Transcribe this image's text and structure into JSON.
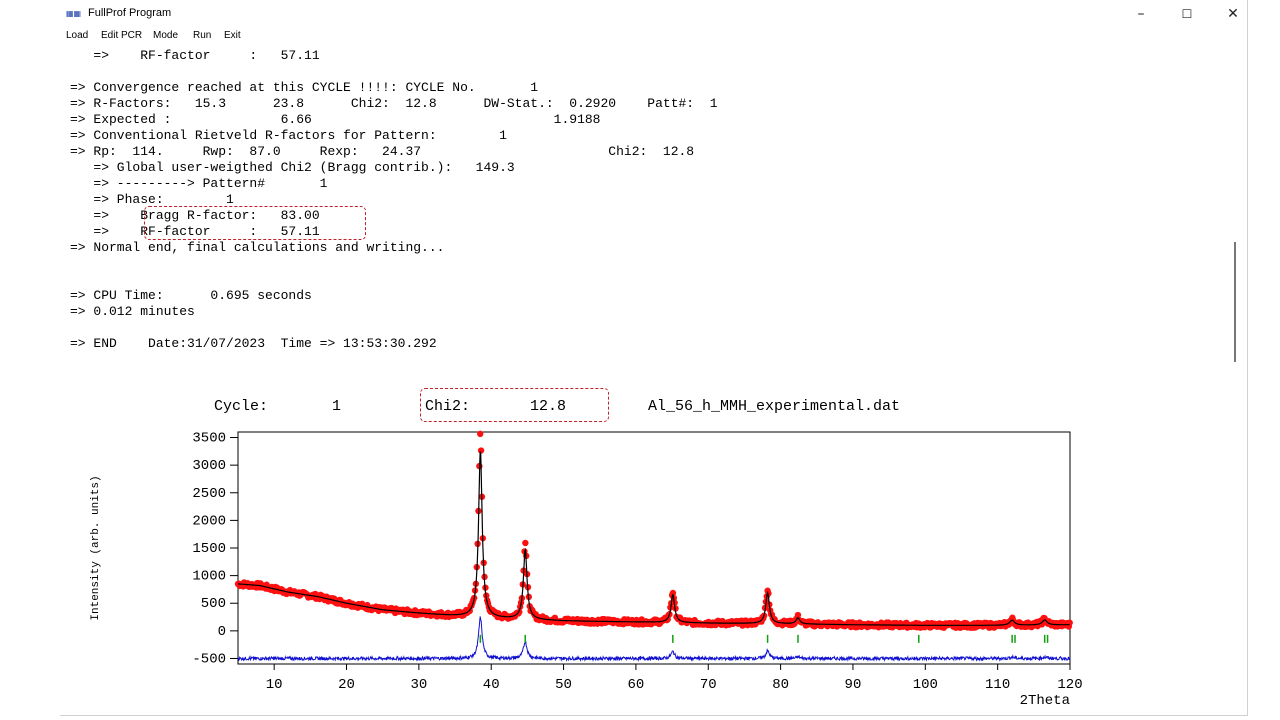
{
  "window": {
    "title": "FullProf Program",
    "controls": {
      "minimize": "–",
      "maximize": "☐",
      "close": "✕"
    }
  },
  "menu": [
    "Load",
    "Edit PCR",
    "Mode",
    "Run",
    "Exit"
  ],
  "console": {
    "lines": [
      "   =>    RF-factor     :   57.11",
      "",
      "=> Convergence reached at this CYCLE !!!!: CYCLE No.       1",
      "=> R-Factors:   15.3      23.8      Chi2:  12.8      DW-Stat.:  0.2920    Patt#:  1",
      "=> Expected :              6.66                               1.9188",
      "=> Conventional Rietveld R-factors for Pattern:        1",
      "=> Rp:  114.     Rwp:  87.0     Rexp:   24.37                        Chi2:  12.8",
      "   => Global user-weigthed Chi2 (Bragg contrib.):   149.3",
      "   => ---------> Pattern#       1",
      "   => Phase:        1",
      "   =>    Bragg R-factor:   83.00",
      "   =>    RF-factor     :   57.11",
      "=> Normal end, final calculations and writing...",
      "",
      "",
      "=> CPU Time:      0.695 seconds",
      "=> 0.012 minutes",
      "",
      "=> END    Date:31/07/2023  Time => 13:53:30.292"
    ]
  },
  "plot": {
    "cycle_label": "Cycle:",
    "cycle_value": "1",
    "chi2_label": "Chi2:",
    "chi2_value": "12.8",
    "filename": "Al_56_h_MMH_experimental.dat"
  },
  "colors": {
    "observed": "#ff1010",
    "calculated": "#000000",
    "difference": "#1010d0",
    "bragg": "#10a010",
    "highlight": "#c0202a"
  },
  "chart_data": {
    "type": "scatter",
    "xlabel": "2Theta",
    "ylabel": "Intensity (arb. units)",
    "xlim": [
      5,
      120
    ],
    "ylim": [
      -600,
      3600
    ],
    "x_ticks": [
      10,
      20,
      30,
      40,
      50,
      60,
      70,
      80,
      90,
      100,
      110,
      120
    ],
    "y_ticks": [
      3500,
      3000,
      2500,
      2000,
      1500,
      1000,
      500,
      0,
      -500
    ],
    "background": [
      [
        5,
        850
      ],
      [
        8,
        820
      ],
      [
        12,
        700
      ],
      [
        16,
        620
      ],
      [
        20,
        500
      ],
      [
        25,
        380
      ],
      [
        30,
        320
      ],
      [
        35,
        270
      ],
      [
        40,
        230
      ],
      [
        50,
        180
      ],
      [
        60,
        160
      ],
      [
        70,
        140
      ],
      [
        80,
        130
      ],
      [
        90,
        110
      ],
      [
        100,
        100
      ],
      [
        110,
        100
      ],
      [
        120,
        110
      ]
    ],
    "peaks": [
      {
        "x": 38.5,
        "height": 3350,
        "width": 0.3
      },
      {
        "x": 44.7,
        "height": 1400,
        "width": 0.3
      },
      {
        "x": 65.1,
        "height": 560,
        "width": 0.3
      },
      {
        "x": 78.2,
        "height": 620,
        "width": 0.3
      },
      {
        "x": 82.4,
        "height": 120,
        "width": 0.3
      },
      {
        "x": 112.0,
        "height": 100,
        "width": 0.4
      },
      {
        "x": 116.5,
        "height": 100,
        "width": 0.4
      }
    ],
    "difference_offset": -500,
    "bragg_positions": [
      38.5,
      44.7,
      65.1,
      78.2,
      82.4,
      99.1,
      112.0,
      112.4,
      116.5,
      116.9
    ],
    "bragg_y": 0
  }
}
